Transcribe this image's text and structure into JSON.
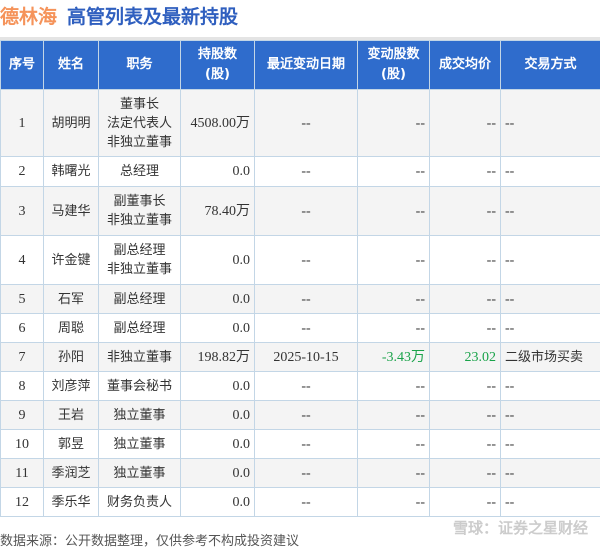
{
  "header": {
    "company": "德林海",
    "subtitle": "高管列表及最新持股"
  },
  "colors": {
    "header_bg": "#2f6ccc",
    "company": "#f5935a",
    "subtitle": "#2f5fbf",
    "negative": "#1aa34a"
  },
  "columns": [
    "序号",
    "姓名",
    "职务",
    "持股数\n(股)",
    "最近变动日期",
    "变动股数\n(股)",
    "成交均价",
    "交易方式"
  ],
  "rows": [
    {
      "no": "1",
      "name": "胡明明",
      "role": "董事长\n法定代表人\n非独立董事",
      "shares": "4508.00万",
      "date": "--",
      "change": "--",
      "price": "--",
      "method": "--"
    },
    {
      "no": "2",
      "name": "韩曙光",
      "role": "总经理",
      "shares": "0.0",
      "date": "--",
      "change": "--",
      "price": "--",
      "method": "--"
    },
    {
      "no": "3",
      "name": "马建华",
      "role": "副董事长\n非独立董事",
      "shares": "78.40万",
      "date": "--",
      "change": "--",
      "price": "--",
      "method": "--"
    },
    {
      "no": "4",
      "name": "许金键",
      "role": "副总经理\n非独立董事",
      "shares": "0.0",
      "date": "--",
      "change": "--",
      "price": "--",
      "method": "--"
    },
    {
      "no": "5",
      "name": "石军",
      "role": "副总经理",
      "shares": "0.0",
      "date": "--",
      "change": "--",
      "price": "--",
      "method": "--"
    },
    {
      "no": "6",
      "name": "周聪",
      "role": "副总经理",
      "shares": "0.0",
      "date": "--",
      "change": "--",
      "price": "--",
      "method": "--"
    },
    {
      "no": "7",
      "name": "孙阳",
      "role": "非独立董事",
      "shares": "198.82万",
      "date": "2025-10-15",
      "change": "-3.43万",
      "price": "23.02",
      "method": "二级市场买卖"
    },
    {
      "no": "8",
      "name": "刘彦萍",
      "role": "董事会秘书",
      "shares": "0.0",
      "date": "--",
      "change": "--",
      "price": "--",
      "method": "--"
    },
    {
      "no": "9",
      "name": "王岩",
      "role": "独立董事",
      "shares": "0.0",
      "date": "--",
      "change": "--",
      "price": "--",
      "method": "--"
    },
    {
      "no": "10",
      "name": "郭昱",
      "role": "独立董事",
      "shares": "0.0",
      "date": "--",
      "change": "--",
      "price": "--",
      "method": "--"
    },
    {
      "no": "11",
      "name": "季润芝",
      "role": "独立董事",
      "shares": "0.0",
      "date": "--",
      "change": "--",
      "price": "--",
      "method": "--"
    },
    {
      "no": "12",
      "name": "季乐华",
      "role": "财务负责人",
      "shares": "0.0",
      "date": "--",
      "change": "--",
      "price": "--",
      "method": "--"
    }
  ],
  "footer": {
    "source": "数据来源：公开数据整理，仅供参考不构成投资建议",
    "brand": "雪球：证券之星财经"
  }
}
